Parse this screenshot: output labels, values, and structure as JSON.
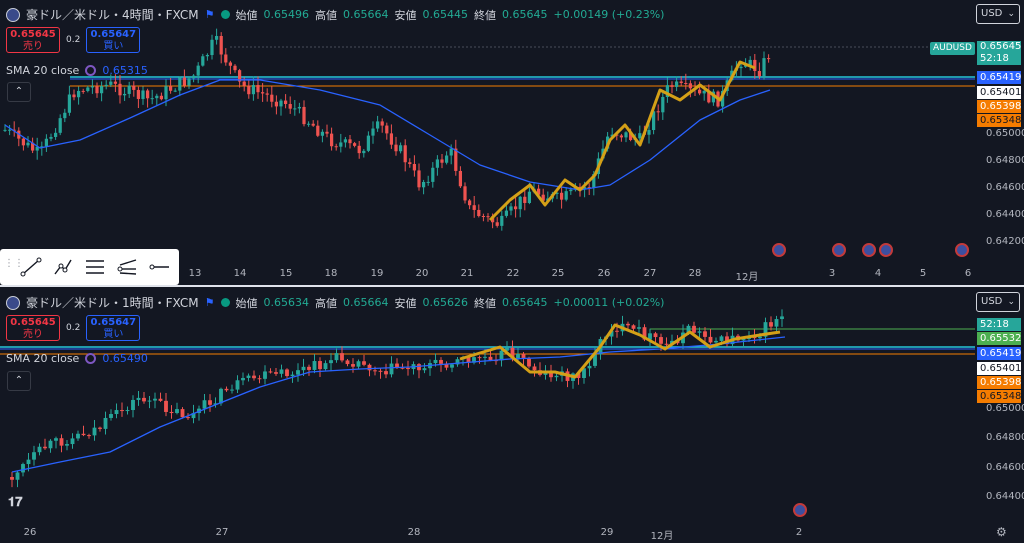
{
  "top": {
    "symbol": "豪ドル／米ドル・4時間・FXCM",
    "ohlc": [
      {
        "k": "始値",
        "v": "0.65496"
      },
      {
        "k": "高値",
        "v": "0.65664"
      },
      {
        "k": "安値",
        "v": "0.65445"
      },
      {
        "k": "終値",
        "v": "0.65645"
      }
    ],
    "change": "+0.00149 (+0.23%)",
    "sell_price": "0.65645",
    "sell_label": "売り",
    "buy_price": "0.65647",
    "buy_label": "買い",
    "spread": "0.2",
    "sma_label": "SMA 20 close",
    "sma_value": "0.65315",
    "currency": "USD",
    "ticker_tag": "AUDUSD",
    "price_labels": [
      {
        "text": "0.65645",
        "sub": "52:18",
        "bg": "#26a69a",
        "fg": "#ffffff"
      },
      {
        "text": "0.65419",
        "bg": "#2962ff",
        "fg": "#ffffff"
      },
      {
        "text": "0.65401",
        "bg": "#ffffff",
        "fg": "#131722"
      },
      {
        "text": "0.65398",
        "bg": "#f57c00",
        "fg": "#ffffff"
      },
      {
        "text": "0.65348",
        "bg": "#f57c00",
        "fg": "#131722"
      }
    ],
    "axis_ticks": [
      "0.65000",
      "0.64800",
      "0.64600",
      "0.64400",
      "0.64200"
    ],
    "x_labels": [
      "13",
      "14",
      "15",
      "18",
      "19",
      "20",
      "21",
      "22",
      "25",
      "26",
      "27",
      "28",
      "12月",
      "3",
      "4",
      "5",
      "6"
    ]
  },
  "bottom": {
    "symbol": "豪ドル／米ドル・1時間・FXCM",
    "ohlc": [
      {
        "k": "始値",
        "v": "0.65634"
      },
      {
        "k": "高値",
        "v": "0.65664"
      },
      {
        "k": "安値",
        "v": "0.65626"
      },
      {
        "k": "終値",
        "v": "0.65645"
      }
    ],
    "change": "+0.00011 (+0.02%)",
    "sell_price": "0.65645",
    "sell_label": "売り",
    "buy_price": "0.65647",
    "buy_label": "買い",
    "spread": "0.2",
    "sma_label": "SMA 20 close",
    "sma_value": "0.65490",
    "currency": "USD",
    "price_labels": [
      {
        "text": "52:18",
        "bg": "#26a69a",
        "fg": "#ffffff"
      },
      {
        "text": "0.65532",
        "bg": "#4caf50",
        "fg": "#ffffff"
      },
      {
        "text": "0.65419",
        "bg": "#2962ff",
        "fg": "#ffffff"
      },
      {
        "text": "0.65401",
        "bg": "#ffffff",
        "fg": "#131722"
      },
      {
        "text": "0.65398",
        "bg": "#f57c00",
        "fg": "#ffffff"
      },
      {
        "text": "0.65348",
        "bg": "#f57c00",
        "fg": "#131722"
      }
    ],
    "axis_ticks": [
      "0.65000",
      "0.64800",
      "0.64600",
      "0.64400"
    ],
    "x_labels": [
      "26",
      "27",
      "28",
      "29",
      "12月",
      "2"
    ]
  },
  "colors": {
    "up": "#26a69a",
    "down": "#ef5350",
    "sma": "#2962ff",
    "zigzag": "#d4a017",
    "bg": "#131722"
  },
  "icons": [
    "australia-flag-icon",
    "us-flag-icon",
    "trend-line-icon",
    "fib-icon",
    "parallel-channel-icon",
    "ray-icon",
    "horizontal-ray-icon",
    "settings-gear-icon",
    "tradingview-logo-icon"
  ]
}
